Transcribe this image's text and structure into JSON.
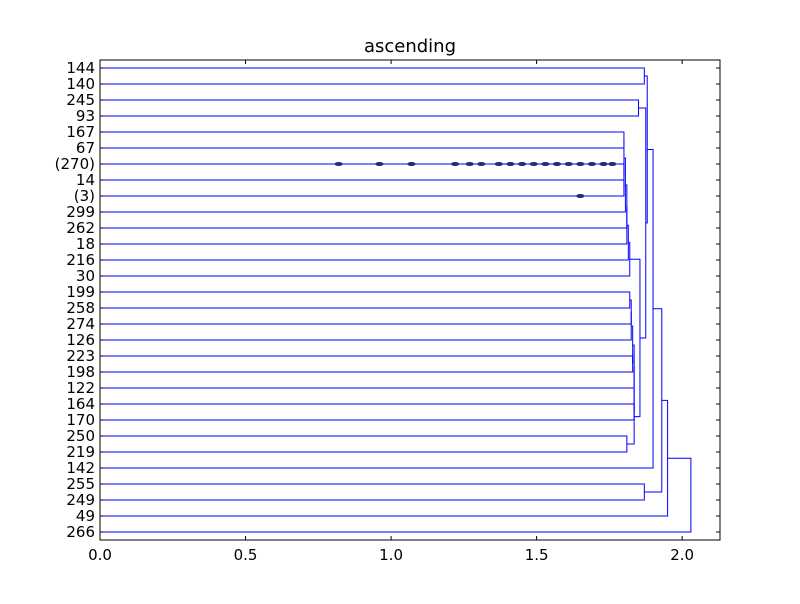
{
  "chart_data": {
    "type": "dendrogram",
    "title": "ascending",
    "orientation": "left",
    "xlim": [
      0.0,
      2.13
    ],
    "x_ticks": [
      "0.0",
      "0.5",
      "1.0",
      "1.5",
      "2.0"
    ],
    "x_tick_values": [
      0.0,
      0.5,
      1.0,
      1.5,
      2.0
    ],
    "leaf_labels": [
      "144",
      "140",
      "245",
      "93",
      "167",
      "67",
      "(270)",
      "14",
      "(3)",
      "299",
      "262",
      "18",
      "216",
      "30",
      "199",
      "258",
      "274",
      "126",
      "223",
      "198",
      "122",
      "164",
      "170",
      "250",
      "219",
      "142",
      "255",
      "249",
      "49",
      "266"
    ],
    "color": "#0000ff",
    "grid": false,
    "links": [
      {
        "left": 4,
        "right": 5,
        "height": 1.8
      },
      {
        "left": 7,
        "right": 8,
        "height": 1.8
      },
      {
        "left": 6,
        "right": 7.5,
        "height": 1.8
      },
      {
        "left": 4.5,
        "right": 6.75,
        "height": 1.8
      },
      {
        "left": 9,
        "right": 5.625,
        "height": 1.805
      },
      {
        "left": 10,
        "right": 7.3125,
        "height": 1.81
      },
      {
        "left": 11,
        "right": 8.65625,
        "height": 1.81
      },
      {
        "left": 12,
        "right": 9.828,
        "height": 1.815
      },
      {
        "left": 13,
        "right": 10.914,
        "height": 1.82
      },
      {
        "left": 14,
        "right": 15,
        "height": 1.82
      },
      {
        "left": 16,
        "right": 14.5,
        "height": 1.825
      },
      {
        "left": 17,
        "right": 15.25,
        "height": 1.825
      },
      {
        "left": 18,
        "right": 19,
        "height": 1.83
      },
      {
        "left": 16.125,
        "right": 18.5,
        "height": 1.83
      },
      {
        "left": 20,
        "right": 17.3125,
        "height": 1.835
      },
      {
        "left": 21,
        "right": 22,
        "height": 1.835
      },
      {
        "left": 18.656,
        "right": 21.5,
        "height": 1.835
      },
      {
        "left": 23,
        "right": 24,
        "height": 1.81
      },
      {
        "left": 20.078,
        "right": 23.5,
        "height": 1.835
      },
      {
        "left": 2,
        "right": 3,
        "height": 1.85
      },
      {
        "left": 11.957,
        "right": 21.789,
        "height": 1.855
      },
      {
        "left": 0,
        "right": 1,
        "height": 1.87
      },
      {
        "left": 2.5,
        "right": 16.873,
        "height": 1.875
      },
      {
        "left": 0.5,
        "right": 9.686,
        "height": 1.88
      },
      {
        "left": 26,
        "right": 27,
        "height": 1.87
      },
      {
        "left": 5.093,
        "right": 25,
        "height": 1.9
      },
      {
        "left": 15.047,
        "right": 26.5,
        "height": 1.93
      },
      {
        "left": 20.773,
        "right": 28,
        "height": 1.95
      },
      {
        "left": 24.387,
        "right": 29,
        "height": 2.03
      }
    ],
    "annotations": [
      {
        "type": "ellipse",
        "row": 6,
        "x": 0.82
      },
      {
        "type": "ellipse",
        "row": 6,
        "x": 0.96
      },
      {
        "type": "ellipse",
        "row": 6,
        "x": 1.07
      },
      {
        "type": "ellipse",
        "row": 6,
        "x": 1.22
      },
      {
        "type": "ellipse",
        "row": 6,
        "x": 1.27
      },
      {
        "type": "ellipse",
        "row": 6,
        "x": 1.31
      },
      {
        "type": "ellipse",
        "row": 6,
        "x": 1.37
      },
      {
        "type": "ellipse",
        "row": 6,
        "x": 1.41
      },
      {
        "type": "ellipse",
        "row": 6,
        "x": 1.45
      },
      {
        "type": "ellipse",
        "row": 6,
        "x": 1.49
      },
      {
        "type": "ellipse",
        "row": 6,
        "x": 1.53
      },
      {
        "type": "ellipse",
        "row": 6,
        "x": 1.57
      },
      {
        "type": "ellipse",
        "row": 6,
        "x": 1.61
      },
      {
        "type": "ellipse",
        "row": 6,
        "x": 1.65
      },
      {
        "type": "ellipse",
        "row": 6,
        "x": 1.69
      },
      {
        "type": "ellipse",
        "row": 6,
        "x": 1.73
      },
      {
        "type": "ellipse",
        "row": 6,
        "x": 1.76
      },
      {
        "type": "ellipse",
        "row": 8,
        "x": 1.65
      }
    ]
  }
}
